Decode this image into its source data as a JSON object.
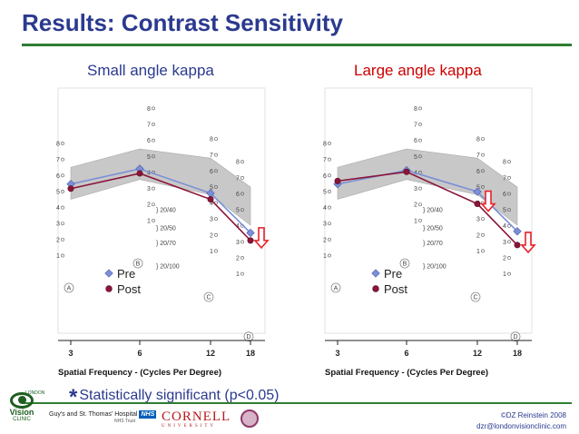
{
  "slide": {
    "title": "Results: Contrast Sensitivity",
    "footnote_star": "*",
    "footnote_text": "Statistically significant (p<0.05)",
    "copyright": "©DZ Reinstein 2008",
    "email": "dzr@londonvisionclinic.com"
  },
  "logos": {
    "vision_top": "LONDON",
    "vision_name": "Vision",
    "vision_sub": "CLINIC",
    "guys": "Guy's and St. Thomas' Hospital",
    "nhs": "NHS",
    "guys_sub": "NHS Trust",
    "cornell": "CORNELL",
    "cornell_sub": "UNIVERSITY"
  },
  "colors": {
    "title": "#2b3a8f",
    "rule": "#2e7d32",
    "pre": "#7b8fd8",
    "post": "#8a1538",
    "norm_band": "#c8c8c8",
    "arrow": "#e8202a"
  },
  "chart_data": [
    {
      "type": "line",
      "title": "Small angle kappa",
      "xlabel": "Spatial Frequency - (Cycles Per Degree)",
      "x": [
        3,
        6,
        12,
        18
      ],
      "ylim": [
        0,
        9
      ],
      "grid": false,
      "legend": "bottom-left",
      "norm_band": {
        "upper": [
          5.7,
          6.9,
          6.3,
          4.4
        ],
        "lower": [
          3.6,
          4.9,
          3.9,
          1.9
        ]
      },
      "series": [
        {
          "name": "Pre",
          "values": [
            4.6,
            5.6,
            4.0,
            1.4
          ]
        },
        {
          "name": "Post",
          "values": [
            4.3,
            5.3,
            3.6,
            0.9
          ]
        }
      ],
      "significant_points": [
        18
      ],
      "annotations": {
        "label_3": "A",
        "label_6": "B",
        "label_12": "C",
        "label_18": "D"
      },
      "snellen": [
        "20/40",
        "20/50",
        "20/70",
        "20/100"
      ],
      "column_ticks": {
        "3": [
          "1",
          "2",
          "3",
          "4",
          "5",
          "6",
          "7",
          "8"
        ],
        "6": [
          "1",
          "2",
          "3",
          "4",
          "5",
          "6",
          "7",
          "8"
        ],
        "12": [
          "1",
          "2",
          "3",
          "4",
          "5",
          "6",
          "7",
          "8"
        ],
        "18": [
          "1",
          "2",
          "3",
          "4",
          "5",
          "6",
          "7",
          "8"
        ]
      }
    },
    {
      "type": "line",
      "title": "Large angle kappa",
      "xlabel": "Spatial Frequency - (Cycles Per Degree)",
      "x": [
        3,
        6,
        12,
        18
      ],
      "ylim": [
        0,
        9
      ],
      "grid": false,
      "legend": "bottom-left",
      "norm_band": {
        "upper": [
          5.7,
          6.9,
          6.3,
          4.4
        ],
        "lower": [
          3.6,
          4.9,
          3.9,
          1.9
        ]
      },
      "series": [
        {
          "name": "Pre",
          "values": [
            4.6,
            5.5,
            4.1,
            1.5
          ]
        },
        {
          "name": "Post",
          "values": [
            4.8,
            5.4,
            3.3,
            0.6
          ]
        }
      ],
      "significant_points": [
        12,
        18
      ],
      "annotations": {
        "label_3": "A",
        "label_6": "B",
        "label_12": "C",
        "label_18": "D"
      },
      "snellen": [
        "20/40",
        "20/50",
        "20/70",
        "20/100"
      ],
      "column_ticks": {
        "3": [
          "1",
          "2",
          "3",
          "4",
          "5",
          "6",
          "7",
          "8"
        ],
        "6": [
          "1",
          "2",
          "3",
          "4",
          "5",
          "6",
          "7",
          "8"
        ],
        "12": [
          "1",
          "2",
          "3",
          "4",
          "5",
          "6",
          "7",
          "8"
        ],
        "18": [
          "1",
          "2",
          "3",
          "4",
          "5",
          "6",
          "7",
          "8"
        ]
      }
    }
  ]
}
